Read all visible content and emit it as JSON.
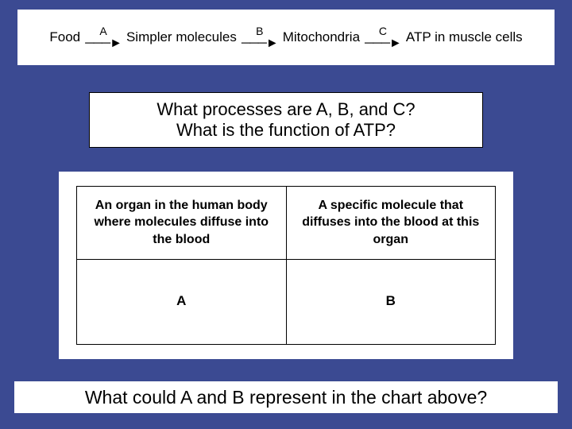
{
  "background_color": "#3b4a92",
  "box_background": "#ffffff",
  "border_color": "#000000",
  "text_color": "#000000",
  "flow": {
    "nodes": [
      "Food",
      "Simpler molecules",
      "Mitochondria",
      "ATP in muscle cells"
    ],
    "arrow_labels": [
      "A",
      "B",
      "C"
    ],
    "node_fontsize": 17,
    "label_fontsize": 14
  },
  "question1": {
    "line1": "What processes are A, B, and C?",
    "line2": "What is the function of ATP?",
    "fontsize": 22
  },
  "table": {
    "columns": [
      "An organ in the human body where molecules diffuse into the blood",
      "A specific molecule that diffuses into the blood at this organ"
    ],
    "rows": [
      [
        "A",
        "B"
      ]
    ],
    "header_fontsize": 16,
    "cell_fontsize": 17,
    "border_width": 1.5
  },
  "question2": {
    "text": "What could A and B represent in the chart above?",
    "fontsize": 23
  }
}
